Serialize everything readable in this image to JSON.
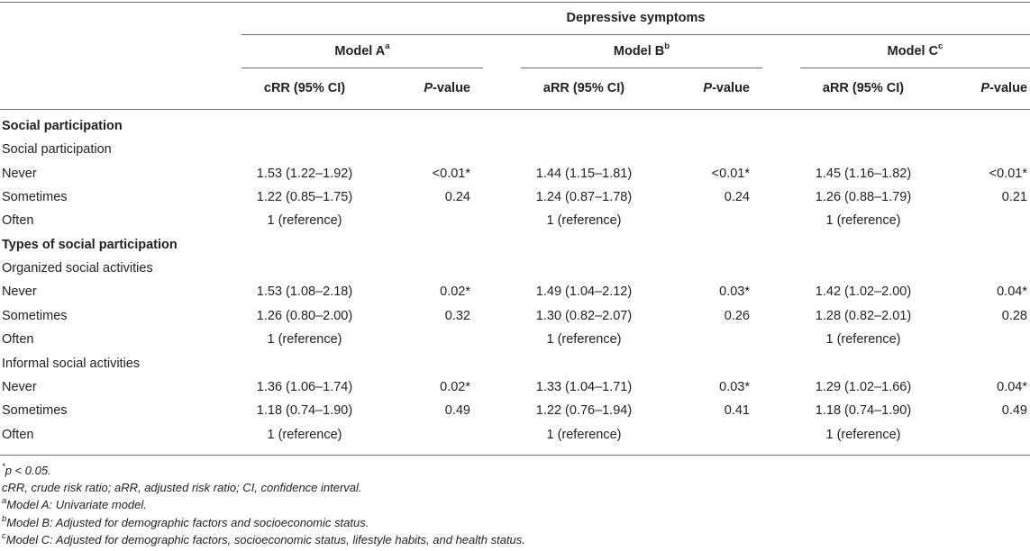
{
  "header": {
    "group_title": "Depressive symptoms",
    "models": [
      {
        "label": "Model A",
        "sup": "a",
        "col_ci": "cRR (95% CI)",
        "col_p_italic": "P",
        "col_p_rest": "-value"
      },
      {
        "label": "Model B",
        "sup": "b",
        "col_ci": "aRR (95% CI)",
        "col_p_italic": "P",
        "col_p_rest": "-value"
      },
      {
        "label": "Model C",
        "sup": "c",
        "col_ci": "aRR (95% CI)",
        "col_p_italic": "P",
        "col_p_rest": "-value"
      }
    ]
  },
  "rows": [
    {
      "label": "Social participation",
      "type": "section"
    },
    {
      "label": "Social participation",
      "type": "subsection"
    },
    {
      "label": "Never",
      "type": "data",
      "a_ci": "1.53 (1.22–1.92)",
      "a_p": "<0.01*",
      "b_ci": "1.44 (1.15–1.81)",
      "b_p": "<0.01*",
      "c_ci": "1.45 (1.16–1.82)",
      "c_p": "<0.01*"
    },
    {
      "label": "Sometimes",
      "type": "data",
      "a_ci": "1.22 (0.85–1.75)",
      "a_p": "0.24",
      "b_ci": "1.24 (0.87–1.78)",
      "b_p": "0.24",
      "c_ci": "1.26 (0.88–1.79)",
      "c_p": "0.21"
    },
    {
      "label": "Often",
      "type": "data",
      "a_ci": "1 (reference)",
      "a_p": "",
      "b_ci": "1 (reference)",
      "b_p": "",
      "c_ci": "1 (reference)",
      "c_p": ""
    },
    {
      "label": "Types of social participation",
      "type": "section"
    },
    {
      "label": "Organized social activities",
      "type": "subsection"
    },
    {
      "label": "Never",
      "type": "data",
      "a_ci": "1.53 (1.08–2.18)",
      "a_p": "0.02*",
      "b_ci": "1.49 (1.04–2.12)",
      "b_p": "0.03*",
      "c_ci": "1.42 (1.02–2.00)",
      "c_p": "0.04*"
    },
    {
      "label": "Sometimes",
      "type": "data",
      "a_ci": "1.26 (0.80–2.00)",
      "a_p": "0.32",
      "b_ci": "1.30 (0.82–2.07)",
      "b_p": "0.26",
      "c_ci": "1.28 (0.82–2.01)",
      "c_p": "0.28"
    },
    {
      "label": "Often",
      "type": "data",
      "a_ci": "1 (reference)",
      "a_p": "",
      "b_ci": "1 (reference)",
      "b_p": "",
      "c_ci": "1 (reference)",
      "c_p": ""
    },
    {
      "label": "Informal social activities",
      "type": "subsection"
    },
    {
      "label": "Never",
      "type": "data",
      "a_ci": "1.36 (1.06–1.74)",
      "a_p": "0.02*",
      "b_ci": "1.33 (1.04–1.71)",
      "b_p": "0.03*",
      "c_ci": "1.29 (1.02–1.66)",
      "c_p": "0.04*"
    },
    {
      "label": "Sometimes",
      "type": "data",
      "a_ci": "1.18 (0.74–1.90)",
      "a_p": "0.49",
      "b_ci": "1.22 (0.76–1.94)",
      "b_p": "0.41",
      "c_ci": "1.18 (0.74–1.90)",
      "c_p": "0.49"
    },
    {
      "label": "Often",
      "type": "data",
      "a_ci": "1 (reference)",
      "a_p": "",
      "b_ci": "1 (reference)",
      "b_p": "",
      "c_ci": "1 (reference)",
      "c_p": ""
    }
  ],
  "footnotes": [
    {
      "sup": "*",
      "text": "p < 0.05."
    },
    {
      "sup": "",
      "text": "cRR, crude risk ratio; aRR, adjusted risk ratio; CI, confidence interval."
    },
    {
      "sup": "a",
      "text": "Model A: Univariate model."
    },
    {
      "sup": "b",
      "text": "Model B: Adjusted for demographic factors and socioeconomic status."
    },
    {
      "sup": "c",
      "text": "Model C: Adjusted for demographic factors, socioeconomic status, lifestyle habits, and health status."
    }
  ]
}
